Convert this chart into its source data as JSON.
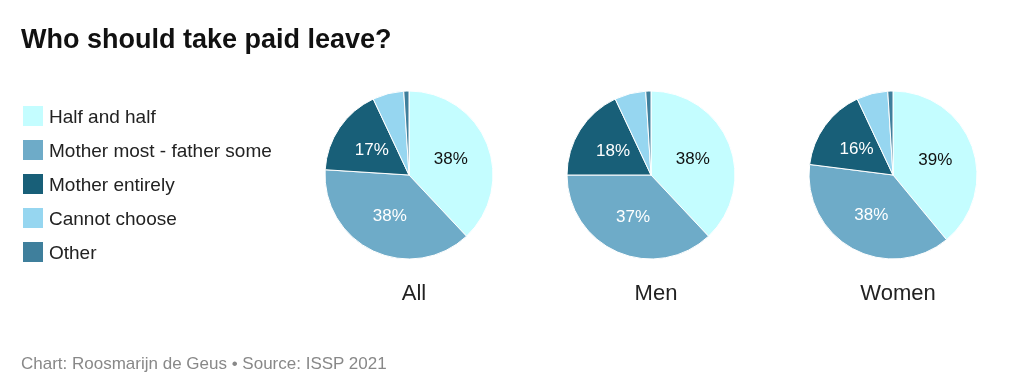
{
  "chart_data": {
    "type": "pie",
    "title": "Who should take paid leave?",
    "categories": [
      "Half and half",
      "Mother most - father some",
      "Mother entirely",
      "Cannot choose",
      "Other"
    ],
    "colors": [
      "#c4fdff",
      "#6eabc8",
      "#185f78",
      "#96d6f0",
      "#3f7f9c"
    ],
    "series": [
      {
        "name": "All",
        "values": [
          38,
          38,
          17,
          6,
          1
        ],
        "value_labels": [
          "38%",
          "38%",
          "17%",
          null,
          null
        ]
      },
      {
        "name": "Men",
        "values": [
          38,
          37,
          18,
          6,
          1
        ],
        "value_labels": [
          "38%",
          "37%",
          "18%",
          null,
          null
        ]
      },
      {
        "name": "Women",
        "values": [
          39,
          38,
          16,
          6,
          1
        ],
        "value_labels": [
          "39%",
          "38%",
          "16%",
          null,
          null
        ]
      }
    ],
    "legend": "left",
    "annotations": [
      "Chart: Roosmarijn de Geus • Source: ISSP 2021"
    ]
  }
}
